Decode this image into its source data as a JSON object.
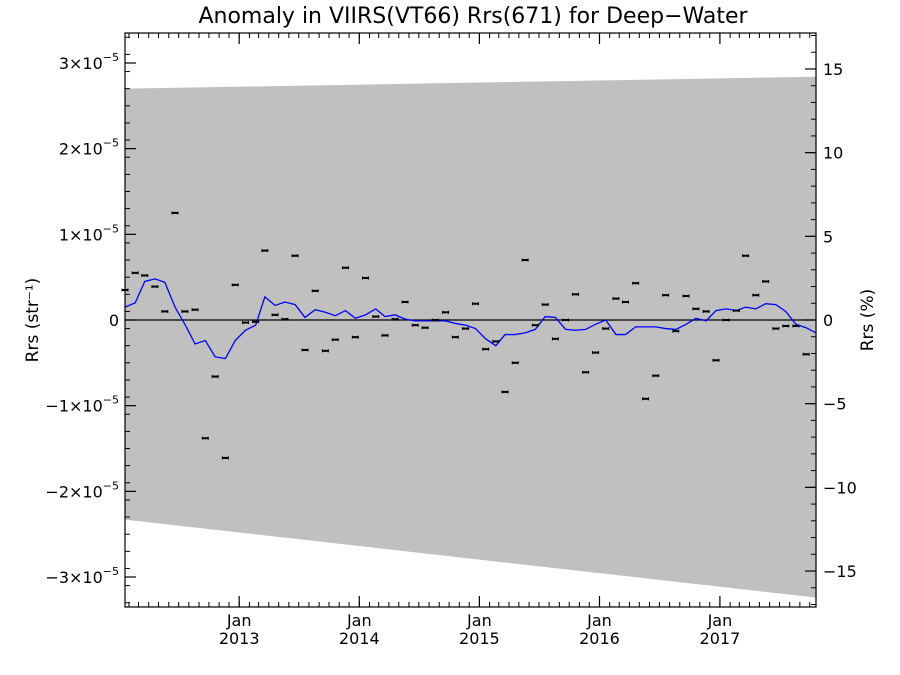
{
  "chart_data": {
    "type": "scatter",
    "title": "Anomaly in VIIRS(VT66) Rrs(671) for Deep−Water",
    "ylabel_left": "Rrs (str⁻¹)",
    "ylabel_right": "Rrs (%)",
    "xlabel": "",
    "xlim": [
      "2012-01-20",
      "2017-10-20"
    ],
    "ylim_left": [
      -3.35e-05,
      3.35e-05
    ],
    "ylim_right": [
      -17.15,
      17.15
    ],
    "x_ticks": [
      {
        "date": "2013-01-01",
        "month": "Jan",
        "year": "2013"
      },
      {
        "date": "2014-01-01",
        "month": "Jan",
        "year": "2014"
      },
      {
        "date": "2015-01-01",
        "month": "Jan",
        "year": "2015"
      },
      {
        "date": "2016-01-01",
        "month": "Jan",
        "year": "2016"
      },
      {
        "date": "2017-01-01",
        "month": "Jan",
        "year": "2017"
      }
    ],
    "y_ticks_left": [
      {
        "value": 3e-05,
        "mant": "3×10",
        "exp": "−5"
      },
      {
        "value": 2e-05,
        "mant": "2×10",
        "exp": "−5"
      },
      {
        "value": 1e-05,
        "mant": "1×10",
        "exp": "−5"
      },
      {
        "value": 0,
        "mant": "0",
        "exp": ""
      },
      {
        "value": -1e-05,
        "mant": "−1×10",
        "exp": "−5"
      },
      {
        "value": -2e-05,
        "mant": "−2×10",
        "exp": "−5"
      },
      {
        "value": -3e-05,
        "mant": "−3×10",
        "exp": "−5"
      }
    ],
    "y_ticks_right": [
      {
        "value": 15,
        "label": "15"
      },
      {
        "value": 10,
        "label": "10"
      },
      {
        "value": 5,
        "label": "5"
      },
      {
        "value": 0,
        "label": "0"
      },
      {
        "value": -5,
        "label": "−5"
      },
      {
        "value": -10,
        "label": "−10"
      },
      {
        "value": -15,
        "label": "−15"
      }
    ],
    "uncertainty_band": {
      "color": "#c0c0c0",
      "upper": [
        {
          "x": "2012-01-20",
          "y": 2.7e-05
        },
        {
          "x": "2017-10-20",
          "y": 2.84e-05
        }
      ],
      "lower": [
        {
          "x": "2012-01-20",
          "y": -2.33e-05
        },
        {
          "x": "2017-10-20",
          "y": -3.24e-05
        }
      ]
    },
    "zero_line": 0,
    "series": [
      {
        "style": "markers",
        "color": "#000000",
        "points": [
          {
            "x": "2012-01-20",
            "y": 3.5e-06
          },
          {
            "x": "2012-02-20",
            "y": 5.5e-06
          },
          {
            "x": "2012-03-20",
            "y": 5.2e-06
          },
          {
            "x": "2012-04-20",
            "y": 3.9e-06
          },
          {
            "x": "2012-05-20",
            "y": 1e-06
          },
          {
            "x": "2012-06-20",
            "y": 1.25e-05
          },
          {
            "x": "2012-07-20",
            "y": 1e-06
          },
          {
            "x": "2012-08-20",
            "y": 1.2e-06
          },
          {
            "x": "2012-09-20",
            "y": -1.38e-05
          },
          {
            "x": "2012-10-20",
            "y": -6.6e-06
          },
          {
            "x": "2012-11-20",
            "y": -1.61e-05
          },
          {
            "x": "2012-12-20",
            "y": 4.1e-06
          },
          {
            "x": "2013-01-20",
            "y": -3e-07
          },
          {
            "x": "2013-02-20",
            "y": -2e-07
          },
          {
            "x": "2013-03-20",
            "y": 8.1e-06
          },
          {
            "x": "2013-04-20",
            "y": 6e-07
          },
          {
            "x": "2013-05-20",
            "y": 1e-07
          },
          {
            "x": "2013-06-20",
            "y": 7.5e-06
          },
          {
            "x": "2013-07-20",
            "y": -3.5e-06
          },
          {
            "x": "2013-08-20",
            "y": 3.4e-06
          },
          {
            "x": "2013-09-20",
            "y": -3.6e-06
          },
          {
            "x": "2013-10-20",
            "y": -2.3e-06
          },
          {
            "x": "2013-11-20",
            "y": 6.1e-06
          },
          {
            "x": "2013-12-20",
            "y": -2e-06
          },
          {
            "x": "2014-01-20",
            "y": 4.9e-06
          },
          {
            "x": "2014-02-20",
            "y": 4e-07
          },
          {
            "x": "2014-03-20",
            "y": -1.8e-06
          },
          {
            "x": "2014-04-20",
            "y": 1e-07
          },
          {
            "x": "2014-05-20",
            "y": 2.1e-06
          },
          {
            "x": "2014-06-20",
            "y": -6e-07
          },
          {
            "x": "2014-07-20",
            "y": -9e-07
          },
          {
            "x": "2014-08-20",
            "y": 0.0
          },
          {
            "x": "2014-09-20",
            "y": 9e-07
          },
          {
            "x": "2014-10-20",
            "y": -2e-06
          },
          {
            "x": "2014-11-20",
            "y": -1e-06
          },
          {
            "x": "2014-12-20",
            "y": 1.9e-06
          },
          {
            "x": "2015-01-20",
            "y": -3.4e-06
          },
          {
            "x": "2015-02-20",
            "y": -2.5e-06
          },
          {
            "x": "2015-03-20",
            "y": -8.4e-06
          },
          {
            "x": "2015-04-20",
            "y": -5e-06
          },
          {
            "x": "2015-05-20",
            "y": 7e-06
          },
          {
            "x": "2015-06-20",
            "y": -6e-07
          },
          {
            "x": "2015-07-20",
            "y": 1.8e-06
          },
          {
            "x": "2015-08-20",
            "y": -2.2e-06
          },
          {
            "x": "2015-09-20",
            "y": 0.0
          },
          {
            "x": "2015-10-20",
            "y": 3e-06
          },
          {
            "x": "2015-11-20",
            "y": -6.1e-06
          },
          {
            "x": "2015-12-20",
            "y": -3.8e-06
          },
          {
            "x": "2016-01-20",
            "y": -1e-06
          },
          {
            "x": "2016-02-20",
            "y": 2.5e-06
          },
          {
            "x": "2016-03-20",
            "y": 2.1e-06
          },
          {
            "x": "2016-04-20",
            "y": 4.3e-06
          },
          {
            "x": "2016-05-20",
            "y": -9.2e-06
          },
          {
            "x": "2016-06-20",
            "y": -6.5e-06
          },
          {
            "x": "2016-07-20",
            "y": 2.9e-06
          },
          {
            "x": "2016-08-20",
            "y": -1.3e-06
          },
          {
            "x": "2016-09-20",
            "y": 2.8e-06
          },
          {
            "x": "2016-10-20",
            "y": 1.3e-06
          },
          {
            "x": "2016-11-20",
            "y": 1e-06
          },
          {
            "x": "2016-12-20",
            "y": -4.7e-06
          },
          {
            "x": "2017-01-20",
            "y": 0.0
          },
          {
            "x": "2017-02-20",
            "y": 1.1e-06
          },
          {
            "x": "2017-03-20",
            "y": 7.5e-06
          },
          {
            "x": "2017-04-20",
            "y": 2.9e-06
          },
          {
            "x": "2017-05-20",
            "y": 4.5e-06
          },
          {
            "x": "2017-06-20",
            "y": -1e-06
          },
          {
            "x": "2017-07-20",
            "y": -7e-07
          },
          {
            "x": "2017-08-20",
            "y": -7e-07
          },
          {
            "x": "2017-09-20",
            "y": -4e-06
          }
        ]
      },
      {
        "style": "line",
        "color": "#0000ff",
        "points": [
          {
            "x": "2012-01-20",
            "y": 1.5e-06
          },
          {
            "x": "2012-02-20",
            "y": 2e-06
          },
          {
            "x": "2012-03-20",
            "y": 4.5e-06
          },
          {
            "x": "2012-04-20",
            "y": 4.8e-06
          },
          {
            "x": "2012-05-20",
            "y": 4.4e-06
          },
          {
            "x": "2012-06-20",
            "y": 1.5e-06
          },
          {
            "x": "2012-07-20",
            "y": -5e-07
          },
          {
            "x": "2012-08-20",
            "y": -2.8e-06
          },
          {
            "x": "2012-09-20",
            "y": -2.4e-06
          },
          {
            "x": "2012-10-20",
            "y": -4.3e-06
          },
          {
            "x": "2012-11-20",
            "y": -4.5e-06
          },
          {
            "x": "2012-12-20",
            "y": -2.4e-06
          },
          {
            "x": "2013-01-20",
            "y": -1.2e-06
          },
          {
            "x": "2013-02-20",
            "y": -6e-07
          },
          {
            "x": "2013-03-20",
            "y": 2.7e-06
          },
          {
            "x": "2013-04-20",
            "y": 1.7e-06
          },
          {
            "x": "2013-05-20",
            "y": 2.1e-06
          },
          {
            "x": "2013-06-20",
            "y": 1.8e-06
          },
          {
            "x": "2013-07-20",
            "y": 3e-07
          },
          {
            "x": "2013-08-20",
            "y": 1.2e-06
          },
          {
            "x": "2013-09-20",
            "y": 9e-07
          },
          {
            "x": "2013-10-20",
            "y": 5e-07
          },
          {
            "x": "2013-11-20",
            "y": 1.1e-06
          },
          {
            "x": "2013-12-20",
            "y": 2e-07
          },
          {
            "x": "2014-01-20",
            "y": 6e-07
          },
          {
            "x": "2014-02-20",
            "y": 1.3e-06
          },
          {
            "x": "2014-03-20",
            "y": 4e-07
          },
          {
            "x": "2014-04-20",
            "y": 6e-07
          },
          {
            "x": "2014-05-20",
            "y": 1e-07
          },
          {
            "x": "2014-06-20",
            "y": -1e-07
          },
          {
            "x": "2014-07-20",
            "y": -1e-07
          },
          {
            "x": "2014-08-20",
            "y": -1e-07
          },
          {
            "x": "2014-09-20",
            "y": -1e-07
          },
          {
            "x": "2014-10-20",
            "y": -4e-07
          },
          {
            "x": "2014-11-20",
            "y": -6e-07
          },
          {
            "x": "2014-12-20",
            "y": -1e-06
          },
          {
            "x": "2015-01-20",
            "y": -2.2e-06
          },
          {
            "x": "2015-02-20",
            "y": -3e-06
          },
          {
            "x": "2015-03-20",
            "y": -1.7e-06
          },
          {
            "x": "2015-04-20",
            "y": -1.7e-06
          },
          {
            "x": "2015-05-20",
            "y": -1.5e-06
          },
          {
            "x": "2015-06-20",
            "y": -1.1e-06
          },
          {
            "x": "2015-07-20",
            "y": 4e-07
          },
          {
            "x": "2015-08-20",
            "y": 3e-07
          },
          {
            "x": "2015-09-20",
            "y": -1.1e-06
          },
          {
            "x": "2015-10-20",
            "y": -1.2e-06
          },
          {
            "x": "2015-11-20",
            "y": -1.1e-06
          },
          {
            "x": "2015-12-20",
            "y": -5e-07
          },
          {
            "x": "2016-01-20",
            "y": 0.0
          },
          {
            "x": "2016-02-20",
            "y": -1.7e-06
          },
          {
            "x": "2016-03-20",
            "y": -1.7e-06
          },
          {
            "x": "2016-04-20",
            "y": -8e-07
          },
          {
            "x": "2016-05-20",
            "y": -8e-07
          },
          {
            "x": "2016-06-20",
            "y": -8e-07
          },
          {
            "x": "2016-07-20",
            "y": -1e-06
          },
          {
            "x": "2016-08-20",
            "y": -1.1e-06
          },
          {
            "x": "2016-09-20",
            "y": -5e-07
          },
          {
            "x": "2016-10-20",
            "y": 2e-07
          },
          {
            "x": "2016-11-20",
            "y": -1e-07
          },
          {
            "x": "2016-12-20",
            "y": 1.1e-06
          },
          {
            "x": "2017-01-20",
            "y": 1.3e-06
          },
          {
            "x": "2017-02-20",
            "y": 1.1e-06
          },
          {
            "x": "2017-03-20",
            "y": 1.5e-06
          },
          {
            "x": "2017-04-20",
            "y": 1.3e-06
          },
          {
            "x": "2017-05-20",
            "y": 1.9e-06
          },
          {
            "x": "2017-06-20",
            "y": 1.8e-06
          },
          {
            "x": "2017-07-20",
            "y": 1e-06
          },
          {
            "x": "2017-08-20",
            "y": -5e-07
          },
          {
            "x": "2017-09-20",
            "y": -9e-07
          },
          {
            "x": "2017-10-20",
            "y": -1.5e-06
          }
        ]
      }
    ]
  }
}
